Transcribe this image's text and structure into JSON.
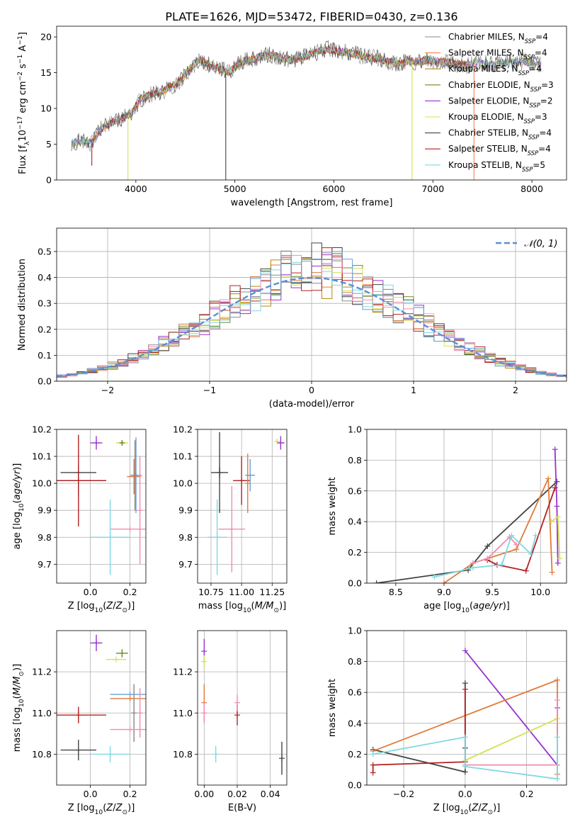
{
  "figure": {
    "title": "PLATE=1626, MJD=53472, FIBERID=0430, z=0.136"
  },
  "colors": {
    "chabrier_miles": "#888888",
    "salpeter_miles": "#ff7f50",
    "kroupa_miles": "#b8860b",
    "chabrier_elodie": "#6b8e23",
    "salpeter_elodie": "#9932cc",
    "kroupa_elodie": "#d4e157",
    "chabrier_stelib": "#444444",
    "salpeter_stelib": "#b22222",
    "kroupa_stelib": "#80d8e0",
    "pink": "#f08cb0",
    "orange": "#e07b39",
    "blue": "#6a9fd8",
    "gaussian": "#5b8fd6"
  },
  "chart_data": [
    {
      "id": "spectrum",
      "type": "line",
      "xlabel": "wavelength [Angstrom, rest frame]",
      "ylabel": "Flux [f",
      "xlim": [
        3200,
        8350
      ],
      "ylim": [
        0,
        21.5
      ],
      "xticks": [
        "4000",
        "5000",
        "6000",
        "7000",
        "8000"
      ],
      "yticks": [
        "0",
        "5",
        "10",
        "15",
        "20"
      ],
      "legend_position": "top-right",
      "series": [
        {
          "name": "Chabrier MILES, N",
          "ssp": "=4"
        },
        {
          "name": "Salpeter MILES, N",
          "ssp": "=4"
        },
        {
          "name": "Kroupa MILES, N",
          "ssp": "=4"
        },
        {
          "name": "Chabrier ELODIE, N",
          "ssp": "=3"
        },
        {
          "name": "Salpeter ELODIE, N",
          "ssp": "=2"
        },
        {
          "name": "Kroupa ELODIE, N",
          "ssp": "=3"
        },
        {
          "name": "Chabrier STELIB, N",
          "ssp": "=4"
        },
        {
          "name": "Salpeter STELIB, N",
          "ssp": "=4"
        },
        {
          "name": "Kroupa STELIB, N",
          "ssp": "=5"
        }
      ],
      "envelope": {
        "x": [
          3350,
          3450,
          3550,
          3650,
          3750,
          3850,
          3950,
          4050,
          4150,
          4250,
          4350,
          4450,
          4550,
          4650,
          4750,
          4850,
          4950,
          5050,
          5150,
          5250,
          5350,
          5450,
          5550,
          5650,
          5750,
          5850,
          5950,
          6050,
          6150,
          6250,
          6350,
          6450,
          6550,
          6650,
          6750,
          6850,
          6950,
          7050,
          7150,
          7250,
          7350,
          7450,
          7550,
          7650,
          7750,
          7850,
          7950,
          8050,
          8100
        ],
        "y": [
          5.2,
          5.5,
          5.0,
          7.2,
          8.0,
          8.6,
          9.3,
          11.3,
          12.0,
          12.2,
          13.0,
          13.8,
          15.7,
          16.8,
          16.0,
          15.5,
          15.0,
          16.5,
          16.8,
          17.2,
          17.5,
          17.2,
          16.8,
          17.0,
          17.5,
          18.0,
          18.3,
          18.0,
          17.8,
          17.5,
          17.2,
          17.0,
          16.5,
          16.2,
          16.6,
          16.5,
          16.8,
          16.6,
          16.5,
          16.2,
          16.0,
          16.5,
          16.3,
          16.2,
          16.4,
          16.5,
          16.6,
          16.2,
          16.0
        ]
      }
    },
    {
      "id": "residuals",
      "type": "line",
      "xlabel": "(data-model)/error",
      "ylabel": "Normed distribution",
      "xlim": [
        -2.5,
        2.5
      ],
      "ylim": [
        0,
        0.59
      ],
      "xticks": [
        "−2",
        "−1",
        "0",
        "1",
        "2"
      ],
      "yticks": [
        "0.0",
        "0.1",
        "0.2",
        "0.3",
        "0.4",
        "0.5"
      ],
      "legend_label": "𝒩(0, 1)",
      "legend_position": "top-right"
    },
    {
      "id": "age_vs_z",
      "type": "scatter",
      "xlabel": "Z [log",
      "ylabel": "age  [log",
      "xlim": [
        -0.17,
        0.28
      ],
      "ylim": [
        9.63,
        10.2
      ],
      "xticks": [
        "0.0",
        "0.2"
      ],
      "yticks": [
        "9.7",
        "9.8",
        "9.9",
        "10.0",
        "10.1",
        "10.2"
      ],
      "points": [
        {
          "x": 0.03,
          "y": 10.15,
          "xerr": 0.03,
          "yerr": 0.025,
          "color": "salpeter_elodie"
        },
        {
          "x": 0.16,
          "y": 10.15,
          "xerr": 0.03,
          "yerr": 0.01,
          "color": "kroupa_elodie"
        },
        {
          "x": 0.16,
          "y": 10.15,
          "xerr": 0.01,
          "yerr": 0.01,
          "color": "chabrier_elodie"
        },
        {
          "x": -0.06,
          "y": 10.04,
          "xerr": 0.09,
          "yerr": 0.02,
          "color": "chabrier_stelib"
        },
        {
          "x": -0.06,
          "y": 10.01,
          "xerr": 0.14,
          "yerr": 0.06,
          "color": "chabrier_stelib"
        },
        {
          "x": -0.06,
          "y": 10.01,
          "xerr": 0.14,
          "yerr": 0.17,
          "color": "salpeter_stelib"
        },
        {
          "x": 0.22,
          "y": 10.025,
          "xerr": 0.035,
          "yerr": 0.065,
          "color": "orange"
        },
        {
          "x": 0.23,
          "y": 10.03,
          "xerr": 0.03,
          "yerr": 0.14,
          "color": "blue"
        },
        {
          "x": 0.225,
          "y": 10.03,
          "xerr": 0.005,
          "yerr": 0.13,
          "color": "chabrier_miles"
        },
        {
          "x": 0.2,
          "y": 9.83,
          "xerr": 0.1,
          "yerr": 0.0,
          "color": "pink"
        },
        {
          "x": 0.25,
          "y": 9.9,
          "xerr": 0.0,
          "yerr": 0.2,
          "color": "pink"
        },
        {
          "x": 0.1,
          "y": 9.8,
          "xerr": 0.1,
          "yerr": 0.14,
          "color": "kroupa_stelib"
        }
      ]
    },
    {
      "id": "age_vs_mass",
      "type": "scatter",
      "xlabel": "mass [log",
      "xlim": [
        10.64,
        11.37
      ],
      "ylim": [
        9.63,
        10.2
      ],
      "xticks": [
        "10.75",
        "11.00",
        "11.25"
      ],
      "yticks": [
        "9.7",
        "9.8",
        "9.9",
        "10.0",
        "10.1",
        "10.2"
      ],
      "points": [
        {
          "x": 11.32,
          "y": 10.15,
          "xerr": 0.03,
          "yerr": 0.025,
          "color": "salpeter_elodie"
        },
        {
          "x": 11.29,
          "y": 10.155,
          "xerr": 0.015,
          "yerr": 0.01,
          "color": "kroupa_elodie"
        },
        {
          "x": 10.82,
          "y": 10.04,
          "xerr": 0.07,
          "yerr": 0.02,
          "color": "chabrier_stelib"
        },
        {
          "x": 10.82,
          "y": 10.04,
          "xerr": 0.0,
          "yerr": 0.15,
          "color": "chabrier_stelib"
        },
        {
          "x": 11.0,
          "y": 10.01,
          "xerr": 0.07,
          "yerr": 0.09,
          "color": "salpeter_stelib"
        },
        {
          "x": 11.07,
          "y": 10.03,
          "xerr": 0.04,
          "yerr": 0.06,
          "color": "blue"
        },
        {
          "x": 11.05,
          "y": 10.0,
          "xerr": 0.0,
          "yerr": 0.11,
          "color": "orange"
        },
        {
          "x": 10.92,
          "y": 9.83,
          "xerr": 0.11,
          "yerr": 0.0,
          "color": "pink"
        },
        {
          "x": 10.92,
          "y": 9.83,
          "xerr": 0.0,
          "yerr": 0.16,
          "color": "pink"
        },
        {
          "x": 10.8,
          "y": 9.8,
          "xerr": 0.08,
          "yerr": 0.14,
          "color": "kroupa_stelib"
        }
      ]
    },
    {
      "id": "massweight_vs_age",
      "type": "line",
      "xlabel": "age  [log",
      "ylabel": "mass weight",
      "xlim": [
        8.2,
        10.27
      ],
      "ylim": [
        0,
        1.0
      ],
      "xticks": [
        "8.5",
        "9.0",
        "9.5",
        "10.0"
      ],
      "yticks": [
        "0.0",
        "0.2",
        "0.4",
        "0.6",
        "0.8",
        "1.0"
      ],
      "series": [
        {
          "color": "chabrier_stelib",
          "x": [
            8.3,
            9.25,
            9.45,
            10.17
          ],
          "y": [
            0.0,
            0.085,
            0.24,
            0.66
          ]
        },
        {
          "color": "salpeter_elodie",
          "x": [
            10.15,
            10.17,
            10.18
          ],
          "y": [
            0.87,
            0.5,
            0.13
          ]
        },
        {
          "color": "orange",
          "x": [
            9.0,
            9.3,
            9.75,
            10.08,
            10.12
          ],
          "y": [
            0.0,
            0.13,
            0.22,
            0.68,
            0.07
          ]
        },
        {
          "color": "kroupa_elodie",
          "x": [
            10.11,
            10.18,
            10.2
          ],
          "y": [
            0.4,
            0.43,
            0.16
          ]
        },
        {
          "color": "salpeter_stelib",
          "x": [
            9.45,
            9.55,
            9.85,
            10.15
          ],
          "y": [
            0.15,
            0.12,
            0.08,
            0.62
          ]
        },
        {
          "color": "pink",
          "x": [
            9.3,
            9.45,
            9.68,
            9.75
          ],
          "y": [
            0.13,
            0.16,
            0.3,
            0.25
          ]
        },
        {
          "color": "kroupa_stelib",
          "x": [
            8.9,
            9.3,
            9.6,
            9.7,
            9.9,
            9.95
          ],
          "y": [
            0.04,
            0.1,
            0.12,
            0.31,
            0.19,
            0.31
          ]
        }
      ]
    },
    {
      "id": "mass_vs_z",
      "type": "scatter",
      "xlabel": "Z [log",
      "ylabel": "mass [log",
      "xlim": [
        -0.17,
        0.28
      ],
      "ylim": [
        10.65,
        11.4
      ],
      "xticks": [
        "0.0",
        "0.2"
      ],
      "yticks": [
        "10.8",
        "11.0",
        "11.2"
      ],
      "points": [
        {
          "x": 0.03,
          "y": 11.34,
          "xerr": 0.03,
          "yerr": 0.04,
          "color": "salpeter_elodie"
        },
        {
          "x": 0.16,
          "y": 11.29,
          "xerr": 0.03,
          "yerr": 0.02,
          "color": "chabrier_elodie"
        },
        {
          "x": 0.13,
          "y": 11.26,
          "xerr": 0.05,
          "yerr": 0.0,
          "color": "kroupa_elodie"
        },
        {
          "x": 0.2,
          "y": 11.09,
          "xerr": 0.1,
          "yerr": 0.0,
          "color": "blue"
        },
        {
          "x": 0.2,
          "y": 11.07,
          "xerr": 0.1,
          "yerr": 0.0,
          "color": "orange"
        },
        {
          "x": 0.22,
          "y": 11.0,
          "xerr": 0.0,
          "yerr": 0.14,
          "color": "chabrier_miles"
        },
        {
          "x": -0.06,
          "y": 10.99,
          "xerr": 0.14,
          "yerr": 0.04,
          "color": "salpeter_stelib"
        },
        {
          "x": 0.2,
          "y": 10.92,
          "xerr": 0.1,
          "yerr": 0.0,
          "color": "pink"
        },
        {
          "x": 0.25,
          "y": 11.0,
          "xerr": 0.0,
          "yerr": 0.12,
          "color": "pink"
        },
        {
          "x": -0.06,
          "y": 10.82,
          "xerr": 0.09,
          "yerr": 0.05,
          "color": "chabrier_stelib"
        },
        {
          "x": 0.1,
          "y": 10.8,
          "xerr": 0.1,
          "yerr": 0.04,
          "color": "kroupa_stelib"
        }
      ]
    },
    {
      "id": "mass_vs_ebv",
      "type": "scatter",
      "xlabel": "E(B-V)",
      "xlim": [
        -0.004,
        0.05
      ],
      "ylim": [
        10.65,
        11.4
      ],
      "xticks": [
        "0.00",
        "0.02",
        "0.04"
      ],
      "yticks": [
        "10.8",
        "11.0",
        "11.2"
      ],
      "points": [
        {
          "x": 0.0,
          "y": 11.3,
          "xerr": 0.0,
          "yerr": 0.06,
          "color": "salpeter_elodie"
        },
        {
          "x": 0.0,
          "y": 11.25,
          "xerr": 0.0,
          "yerr": 0.03,
          "color": "kroupa_elodie"
        },
        {
          "x": 0.0,
          "y": 11.05,
          "xerr": 0.0,
          "yerr": 0.09,
          "color": "orange"
        },
        {
          "x": 0.0,
          "y": 11.0,
          "xerr": 0.0,
          "yerr": 0.05,
          "color": "pink"
        },
        {
          "x": 0.007,
          "y": 10.8,
          "xerr": 0.0,
          "yerr": 0.04,
          "color": "kroupa_stelib"
        },
        {
          "x": 0.02,
          "y": 10.99,
          "xerr": 0.0,
          "yerr": 0.05,
          "color": "salpeter_stelib"
        },
        {
          "x": 0.02,
          "y": 11.05,
          "xerr": 0.0,
          "yerr": 0.04,
          "color": "pink"
        },
        {
          "x": 0.047,
          "y": 10.78,
          "xerr": 0.0,
          "yerr": 0.08,
          "color": "chabrier_stelib"
        }
      ]
    },
    {
      "id": "massweight_vs_z",
      "type": "line",
      "xlabel": "Z [log",
      "ylabel": "mass weight",
      "xlim": [
        -0.32,
        0.33
      ],
      "ylim": [
        0,
        1.0
      ],
      "xticks": [
        "−0.2",
        "0.0",
        "0.2"
      ],
      "yticks": [
        "0.0",
        "0.2",
        "0.4",
        "0.6",
        "0.8",
        "1.0"
      ],
      "series": [
        {
          "color": "chabrier_stelib",
          "x": [
            -0.3,
            0.0,
            0.0,
            0.0
          ],
          "y": [
            0.23,
            0.085,
            0.24,
            0.66
          ]
        },
        {
          "color": "salpeter_elodie",
          "x": [
            0.0,
            0.3,
            0.3
          ],
          "y": [
            0.87,
            0.13,
            0.5
          ]
        },
        {
          "color": "orange",
          "x": [
            -0.3,
            0.3,
            0.3
          ],
          "y": [
            0.22,
            0.68,
            0.07
          ]
        },
        {
          "color": "kroupa_elodie",
          "x": [
            0.0,
            0.3,
            0.3
          ],
          "y": [
            0.16,
            0.43,
            0.4
          ]
        },
        {
          "color": "salpeter_stelib",
          "x": [
            -0.3,
            -0.3,
            0.0,
            0.0
          ],
          "y": [
            0.08,
            0.13,
            0.15,
            0.62
          ]
        },
        {
          "color": "pink",
          "x": [
            0.0,
            0.3,
            0.3
          ],
          "y": [
            0.13,
            0.13,
            0.55
          ]
        },
        {
          "color": "kroupa_stelib",
          "x": [
            -0.3,
            0.0,
            0.0,
            0.3,
            0.3
          ],
          "y": [
            0.2,
            0.31,
            0.12,
            0.04,
            0.31
          ]
        }
      ]
    }
  ]
}
